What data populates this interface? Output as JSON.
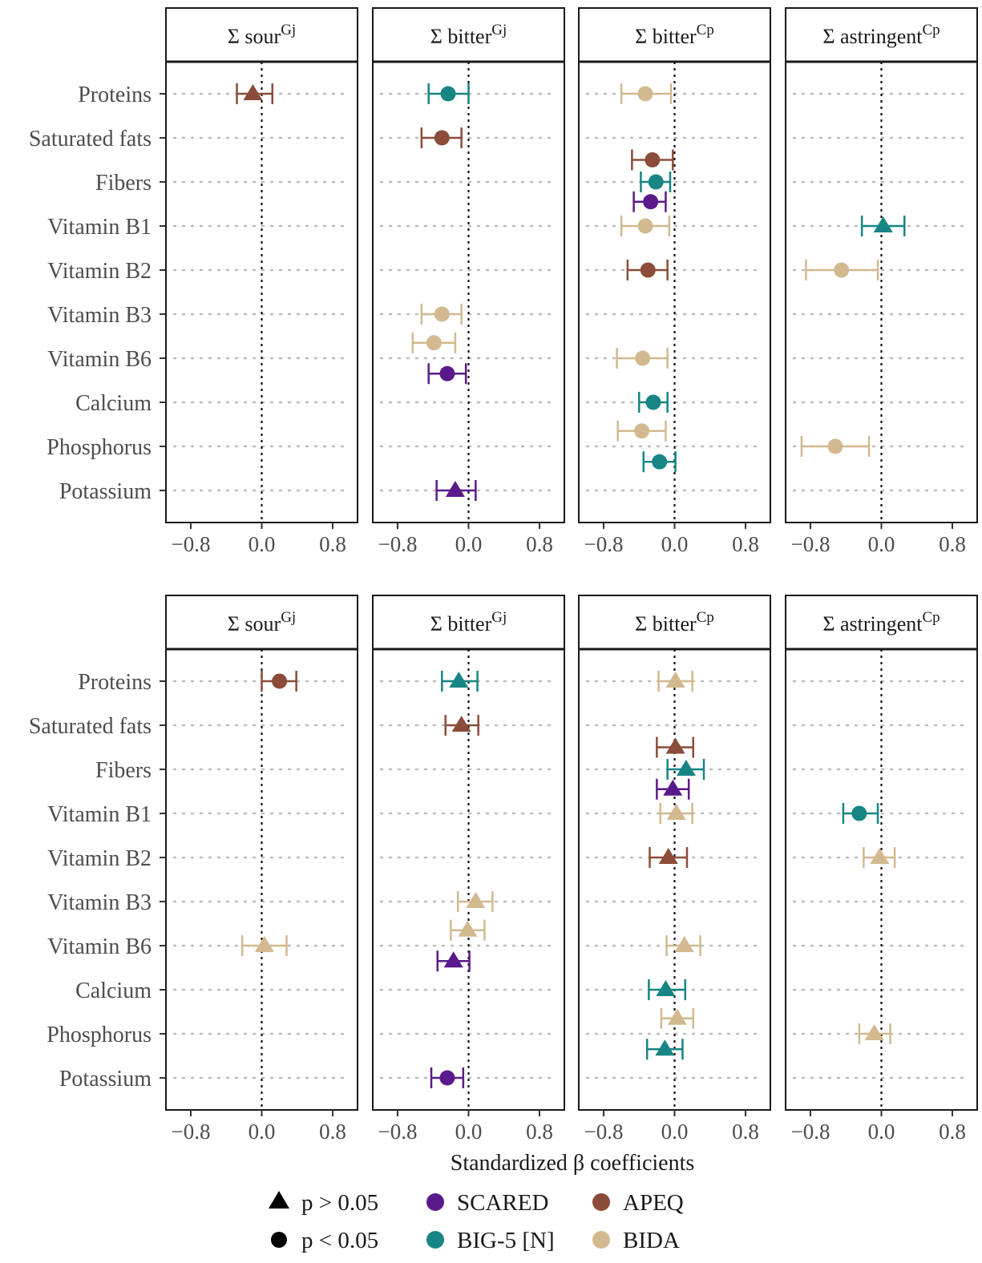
{
  "chart_data": {
    "type": "forest",
    "xlabel": "Standardized β coefficients",
    "xticks": [
      "−0.8",
      "0.0",
      "0.8"
    ],
    "xtick_values": [
      -0.8,
      0.0,
      0.8
    ],
    "xlim": [
      -1.08,
      1.08
    ],
    "reference_line": 0.0,
    "categories": [
      "Proteins",
      "Saturated fats",
      "Fibers",
      "Vitamin B1",
      "Vitamin B2",
      "Vitamin B3",
      "Vitamin B6",
      "Calcium",
      "Phosphorus",
      "Potassium"
    ],
    "strips": [
      {
        "base": "Σ sour",
        "sup": "Gj"
      },
      {
        "base": "Σ bitter",
        "sup": "Gj"
      },
      {
        "base": "Σ bitter",
        "sup": "Cp"
      },
      {
        "base": "Σ astringent",
        "sup": "Cp"
      }
    ],
    "legend_position": "bottom",
    "legend": {
      "shapes": [
        {
          "shape": "triangle",
          "label": "p > 0.05"
        },
        {
          "shape": "circle",
          "label": "p < 0.05"
        }
      ],
      "colors": [
        {
          "name": "SCARED",
          "color": "#5B1A8B"
        },
        {
          "name": "BIG-5 [N]",
          "color": "#178584"
        },
        {
          "name": "APEQ",
          "color": "#8B4C39"
        },
        {
          "name": "BIDA",
          "color": "#D2B98F"
        }
      ]
    },
    "rows": [
      {
        "facets": [
          {
            "points": [
              {
                "category": "Proteins",
                "offset": 0,
                "series": "APEQ",
                "shape": "triangle",
                "est": -0.1,
                "lo": -0.28,
                "hi": 0.12
              }
            ]
          },
          {
            "points": [
              {
                "category": "Proteins",
                "offset": 0,
                "series": "BIG-5 [N]",
                "shape": "circle",
                "est": -0.23,
                "lo": -0.45,
                "hi": 0.0
              },
              {
                "category": "Saturated fats",
                "offset": 0,
                "series": "APEQ",
                "shape": "circle",
                "est": -0.3,
                "lo": -0.53,
                "hi": -0.08
              },
              {
                "category": "Vitamin B3",
                "offset": 0,
                "series": "BIDA",
                "shape": "circle",
                "est": -0.3,
                "lo": -0.53,
                "hi": -0.08
              },
              {
                "category": "Vitamin B3",
                "offset": 0.65,
                "series": "BIDA",
                "shape": "circle",
                "est": -0.39,
                "lo": -0.63,
                "hi": -0.15
              },
              {
                "category": "Vitamin B6",
                "offset": 0.35,
                "series": "SCARED",
                "shape": "circle",
                "est": -0.24,
                "lo": -0.45,
                "hi": -0.03
              },
              {
                "category": "Potassium",
                "offset": 0,
                "series": "SCARED",
                "shape": "triangle",
                "est": -0.15,
                "lo": -0.36,
                "hi": 0.08
              }
            ]
          },
          {
            "points": [
              {
                "category": "Proteins",
                "offset": 0,
                "series": "BIDA",
                "shape": "circle",
                "est": -0.33,
                "lo": -0.6,
                "hi": -0.04
              },
              {
                "category": "Saturated fats",
                "offset": 0.5,
                "series": "APEQ",
                "shape": "circle",
                "est": -0.25,
                "lo": -0.48,
                "hi": -0.02
              },
              {
                "category": "Fibers",
                "offset": 0,
                "series": "BIG-5 [N]",
                "shape": "circle",
                "est": -0.21,
                "lo": -0.38,
                "hi": -0.05
              },
              {
                "category": "Fibers",
                "offset": 0.45,
                "series": "SCARED",
                "shape": "circle",
                "est": -0.27,
                "lo": -0.46,
                "hi": -0.1
              },
              {
                "category": "Vitamin B1",
                "offset": 0,
                "series": "BIDA",
                "shape": "circle",
                "est": -0.33,
                "lo": -0.6,
                "hi": -0.06
              },
              {
                "category": "Vitamin B2",
                "offset": 0,
                "series": "APEQ",
                "shape": "circle",
                "est": -0.3,
                "lo": -0.53,
                "hi": -0.08
              },
              {
                "category": "Vitamin B6",
                "offset": 0,
                "series": "BIDA",
                "shape": "circle",
                "est": -0.36,
                "lo": -0.65,
                "hi": -0.08
              },
              {
                "category": "Calcium",
                "offset": 0,
                "series": "BIG-5 [N]",
                "shape": "circle",
                "est": -0.24,
                "lo": -0.4,
                "hi": -0.08
              },
              {
                "category": "Calcium",
                "offset": 0.65,
                "series": "BIDA",
                "shape": "circle",
                "est": -0.37,
                "lo": -0.64,
                "hi": -0.1
              },
              {
                "category": "Phosphorus",
                "offset": 0.35,
                "series": "BIG-5 [N]",
                "shape": "circle",
                "est": -0.17,
                "lo": -0.35,
                "hi": 0.01
              }
            ]
          },
          {
            "points": [
              {
                "category": "Vitamin B1",
                "offset": 0,
                "series": "BIG-5 [N]",
                "shape": "triangle",
                "est": 0.02,
                "lo": -0.22,
                "hi": 0.26
              },
              {
                "category": "Vitamin B2",
                "offset": 0,
                "series": "BIDA",
                "shape": "circle",
                "est": -0.45,
                "lo": -0.85,
                "hi": -0.04
              },
              {
                "category": "Phosphorus",
                "offset": 0,
                "series": "BIDA",
                "shape": "circle",
                "est": -0.52,
                "lo": -0.9,
                "hi": -0.14
              }
            ]
          }
        ]
      },
      {
        "facets": [
          {
            "points": [
              {
                "category": "Proteins",
                "offset": 0,
                "series": "APEQ",
                "shape": "circle",
                "est": 0.2,
                "lo": 0.0,
                "hi": 0.39
              },
              {
                "category": "Vitamin B6",
                "offset": 0,
                "series": "BIDA",
                "shape": "triangle",
                "est": 0.03,
                "lo": -0.22,
                "hi": 0.28
              }
            ]
          },
          {
            "points": [
              {
                "category": "Proteins",
                "offset": 0,
                "series": "BIG-5 [N]",
                "shape": "triangle",
                "est": -0.11,
                "lo": -0.3,
                "hi": 0.1
              },
              {
                "category": "Saturated fats",
                "offset": 0,
                "series": "APEQ",
                "shape": "triangle",
                "est": -0.08,
                "lo": -0.26,
                "hi": 0.11
              },
              {
                "category": "Vitamin B3",
                "offset": 0,
                "series": "BIDA",
                "shape": "triangle",
                "est": 0.08,
                "lo": -0.12,
                "hi": 0.27
              },
              {
                "category": "Vitamin B3",
                "offset": 0.65,
                "series": "BIDA",
                "shape": "triangle",
                "est": -0.01,
                "lo": -0.2,
                "hi": 0.18
              },
              {
                "category": "Vitamin B6",
                "offset": 0.35,
                "series": "SCARED",
                "shape": "triangle",
                "est": -0.17,
                "lo": -0.35,
                "hi": 0.01
              },
              {
                "category": "Potassium",
                "offset": 0,
                "series": "SCARED",
                "shape": "circle",
                "est": -0.24,
                "lo": -0.42,
                "hi": -0.06
              }
            ]
          },
          {
            "points": [
              {
                "category": "Proteins",
                "offset": 0,
                "series": "BIDA",
                "shape": "triangle",
                "est": 0.01,
                "lo": -0.18,
                "hi": 0.2
              },
              {
                "category": "Saturated fats",
                "offset": 0.5,
                "series": "APEQ",
                "shape": "triangle",
                "est": 0.01,
                "lo": -0.2,
                "hi": 0.21
              },
              {
                "category": "Fibers",
                "offset": 0,
                "series": "BIG-5 [N]",
                "shape": "triangle",
                "est": 0.13,
                "lo": -0.08,
                "hi": 0.33
              },
              {
                "category": "Fibers",
                "offset": 0.45,
                "series": "SCARED",
                "shape": "triangle",
                "est": -0.02,
                "lo": -0.2,
                "hi": 0.16
              },
              {
                "category": "Vitamin B1",
                "offset": 0,
                "series": "BIDA",
                "shape": "triangle",
                "est": 0.02,
                "lo": -0.16,
                "hi": 0.2
              },
              {
                "category": "Vitamin B2",
                "offset": 0,
                "series": "APEQ",
                "shape": "triangle",
                "est": -0.07,
                "lo": -0.28,
                "hi": 0.14
              },
              {
                "category": "Vitamin B6",
                "offset": 0,
                "series": "BIDA",
                "shape": "triangle",
                "est": 0.11,
                "lo": -0.09,
                "hi": 0.29
              },
              {
                "category": "Calcium",
                "offset": 0,
                "series": "BIG-5 [N]",
                "shape": "triangle",
                "est": -0.1,
                "lo": -0.29,
                "hi": 0.12
              },
              {
                "category": "Calcium",
                "offset": 0.65,
                "series": "BIDA",
                "shape": "triangle",
                "est": 0.03,
                "lo": -0.15,
                "hi": 0.21
              },
              {
                "category": "Phosphorus",
                "offset": 0.35,
                "series": "BIG-5 [N]",
                "shape": "triangle",
                "est": -0.11,
                "lo": -0.31,
                "hi": 0.09
              }
            ]
          },
          {
            "points": [
              {
                "category": "Vitamin B1",
                "offset": 0,
                "series": "BIG-5 [N]",
                "shape": "circle",
                "est": -0.25,
                "lo": -0.43,
                "hi": -0.04
              },
              {
                "category": "Vitamin B2",
                "offset": 0,
                "series": "BIDA",
                "shape": "triangle",
                "est": -0.02,
                "lo": -0.2,
                "hi": 0.15
              },
              {
                "category": "Phosphorus",
                "offset": 0,
                "series": "BIDA",
                "shape": "triangle",
                "est": -0.08,
                "lo": -0.25,
                "hi": 0.1
              }
            ]
          }
        ]
      }
    ]
  }
}
